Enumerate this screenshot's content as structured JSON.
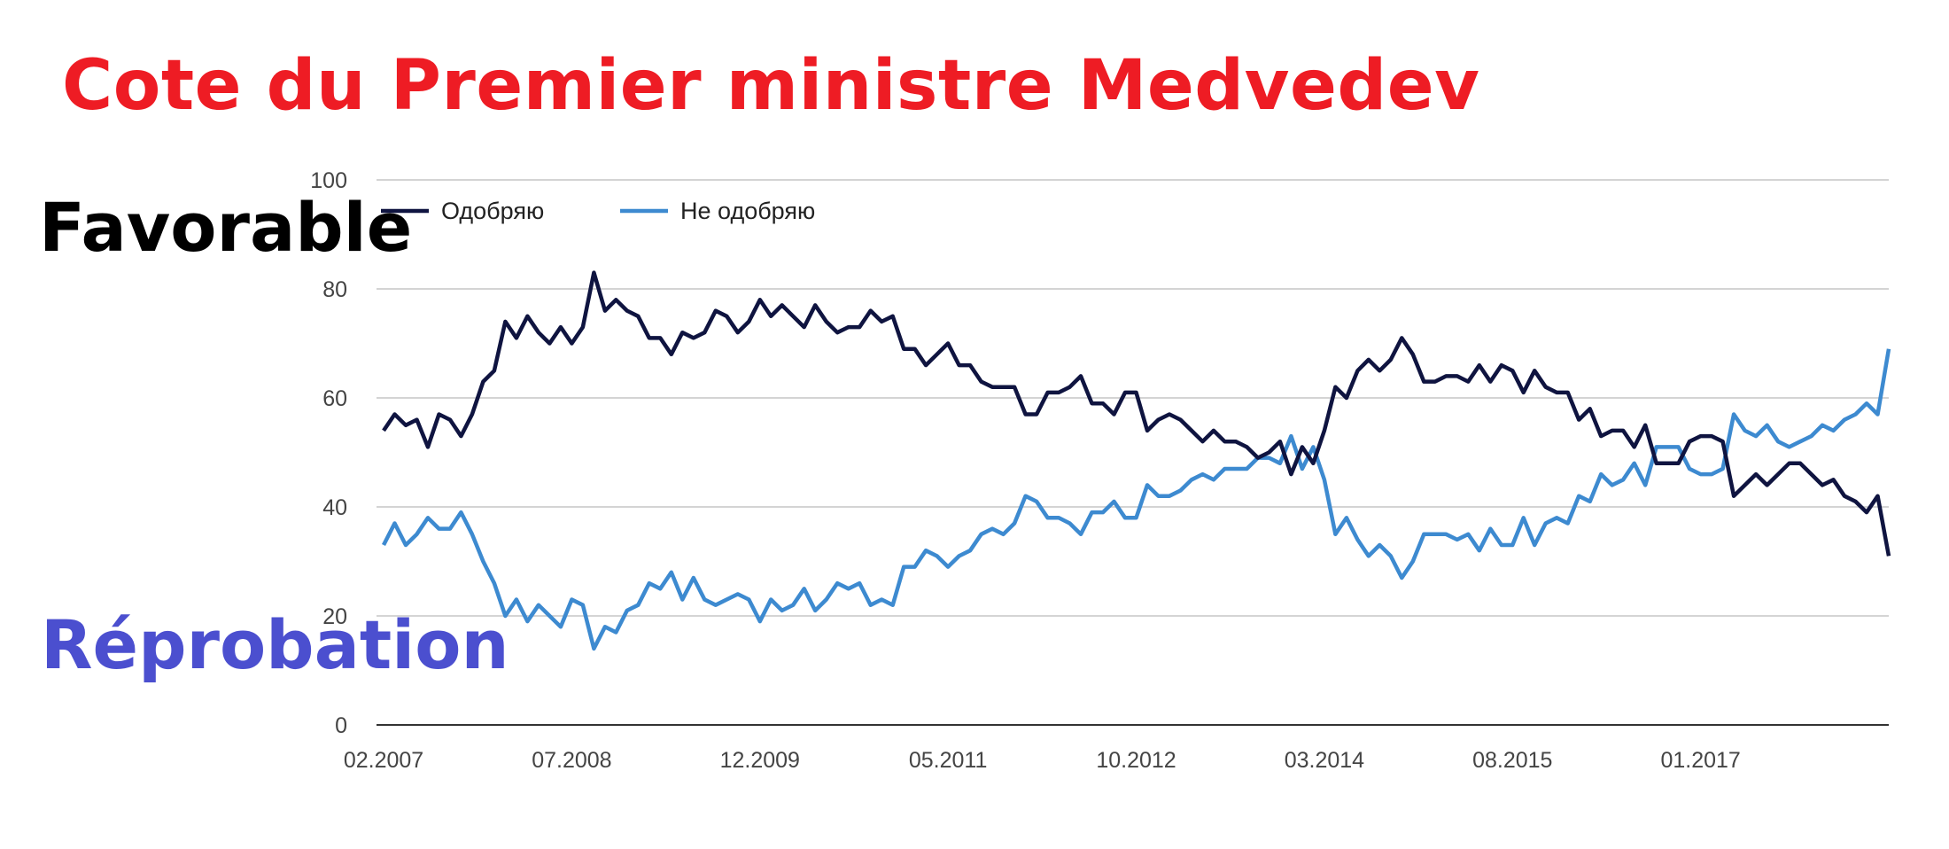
{
  "headline": "Cote du Premier ministre Medvedev",
  "overlay_labels": {
    "favorable": "Favorable",
    "disapproval": "Réprobation"
  },
  "chart_data": {
    "type": "line",
    "title": "",
    "xlabel": "",
    "ylabel": "",
    "ylim": [
      0,
      100
    ],
    "yticks": [
      0,
      20,
      40,
      60,
      80,
      100
    ],
    "xticks": [
      "02.2007",
      "07.2008",
      "12.2009",
      "05.2011",
      "10.2012",
      "03.2014",
      "08.2015",
      "01.2017"
    ],
    "grid": true,
    "legend": "top-left",
    "series": [
      {
        "name": "Одобряю",
        "color": "#0f1440",
        "values": [
          54,
          57,
          55,
          56,
          51,
          57,
          56,
          53,
          57,
          63,
          65,
          74,
          71,
          75,
          72,
          70,
          73,
          70,
          73,
          83,
          76,
          78,
          76,
          75,
          71,
          71,
          68,
          72,
          71,
          72,
          76,
          75,
          72,
          74,
          78,
          75,
          77,
          75,
          73,
          77,
          74,
          72,
          73,
          73,
          76,
          74,
          75,
          69,
          69,
          66,
          68,
          70,
          66,
          66,
          63,
          62,
          62,
          62,
          57,
          57,
          61,
          61,
          62,
          64,
          59,
          59,
          57,
          61,
          61,
          54,
          56,
          57,
          56,
          54,
          52,
          54,
          52,
          52,
          51,
          49,
          50,
          52,
          46,
          51,
          48,
          54,
          62,
          60,
          65,
          67,
          65,
          67,
          71,
          68,
          63,
          63,
          64,
          64,
          63,
          66,
          63,
          66,
          65,
          61,
          65,
          62,
          61,
          61,
          56,
          58,
          53,
          54,
          54,
          51,
          55,
          48,
          48,
          48,
          52,
          53,
          53,
          52,
          42,
          44,
          46,
          44,
          46,
          48,
          48,
          46,
          44,
          45,
          42,
          41,
          39,
          42,
          31
        ]
      },
      {
        "name": "Не одобряю",
        "color": "#3d8ad0",
        "values": [
          33,
          37,
          33,
          35,
          38,
          36,
          36,
          39,
          35,
          30,
          26,
          20,
          23,
          19,
          22,
          20,
          18,
          23,
          22,
          14,
          18,
          17,
          21,
          22,
          26,
          25,
          28,
          23,
          27,
          23,
          22,
          23,
          24,
          23,
          19,
          23,
          21,
          22,
          25,
          21,
          23,
          26,
          25,
          26,
          22,
          23,
          22,
          29,
          29,
          32,
          31,
          29,
          31,
          32,
          35,
          36,
          35,
          37,
          42,
          41,
          38,
          38,
          37,
          35,
          39,
          39,
          41,
          38,
          38,
          44,
          42,
          42,
          43,
          45,
          46,
          45,
          47,
          47,
          47,
          49,
          49,
          48,
          53,
          47,
          51,
          45,
          35,
          38,
          34,
          31,
          33,
          31,
          27,
          30,
          35,
          35,
          35,
          34,
          35,
          32,
          36,
          33,
          33,
          38,
          33,
          37,
          38,
          37,
          42,
          41,
          46,
          44,
          45,
          48,
          44,
          51,
          51,
          51,
          47,
          46,
          46,
          47,
          57,
          54,
          53,
          55,
          52,
          51,
          52,
          53,
          55,
          54,
          56,
          57,
          59,
          57,
          69
        ]
      }
    ]
  }
}
